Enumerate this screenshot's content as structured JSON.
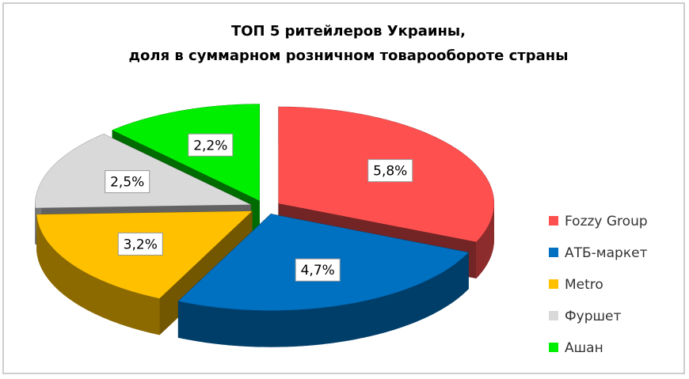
{
  "chart_data": {
    "type": "pie",
    "title": [
      "ТОП 5 ритейлеров Украины,",
      "доля в суммарном розничном товарообороте  страны"
    ],
    "categories": [
      "Fozzy Group",
      "АТБ-маркет",
      "Metro",
      "Фуршет",
      "Ашан"
    ],
    "values": [
      5.8,
      4.7,
      3.2,
      2.5,
      2.2
    ],
    "value_labels": [
      "5,8%",
      "4,7%",
      "3,2%",
      "2,5%",
      "2,2%"
    ],
    "colors": [
      "#ff5050",
      "#0070c0",
      "#ffc000",
      "#d9d9d9",
      "#00ee00"
    ],
    "legend": "right"
  }
}
